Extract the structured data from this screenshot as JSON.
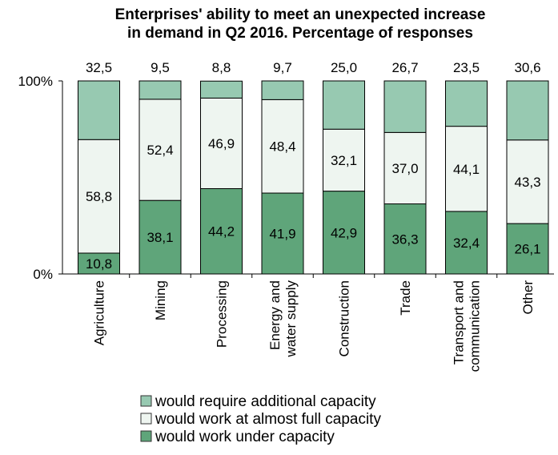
{
  "chart_data": {
    "type": "bar",
    "stacked": true,
    "title_lines": [
      "Enterprises' ability to meet an unexpected increase",
      "in demand in Q2 2016. Percentage of responses"
    ],
    "y_tick_labels": [
      "0%",
      "100%"
    ],
    "ylim": [
      0,
      100
    ],
    "categories": [
      [
        "Agriculture"
      ],
      [
        "Mining"
      ],
      [
        "Processing"
      ],
      [
        "Energy and",
        "water supply"
      ],
      [
        "Construction"
      ],
      [
        "Trade"
      ],
      [
        "Transport and",
        "communication"
      ],
      [
        "Other"
      ]
    ],
    "series": [
      {
        "name": "would work under capacity",
        "color": "#5fa57a",
        "values": [
          10.8,
          38.1,
          44.2,
          41.9,
          42.9,
          36.3,
          32.4,
          26.1
        ],
        "labels": [
          "10,8",
          "38,1",
          "44,2",
          "41,9",
          "42,9",
          "36,3",
          "32,4",
          "26,1"
        ]
      },
      {
        "name": "would work at almost full capacity",
        "color": "#eef5f0",
        "values": [
          58.8,
          52.4,
          46.9,
          48.4,
          32.1,
          37.0,
          44.1,
          43.3
        ],
        "labels": [
          "58,8",
          "52,4",
          "46,9",
          "48,4",
          "32,1",
          "37,0",
          "44,1",
          "43,3"
        ]
      },
      {
        "name": "would require additional capacity",
        "color": "#97c9b1",
        "values": [
          32.5,
          9.5,
          8.8,
          9.7,
          25.0,
          26.7,
          23.5,
          30.6
        ],
        "labels": [
          "32,5",
          "9,5",
          "8,8",
          "9,7",
          "25,0",
          "26,7",
          "23,5",
          "30,6"
        ]
      }
    ],
    "legend_order": [
      2,
      1,
      0
    ],
    "legend_placement": "bottom",
    "top_series_labels_above_bar": true,
    "grid": false
  }
}
